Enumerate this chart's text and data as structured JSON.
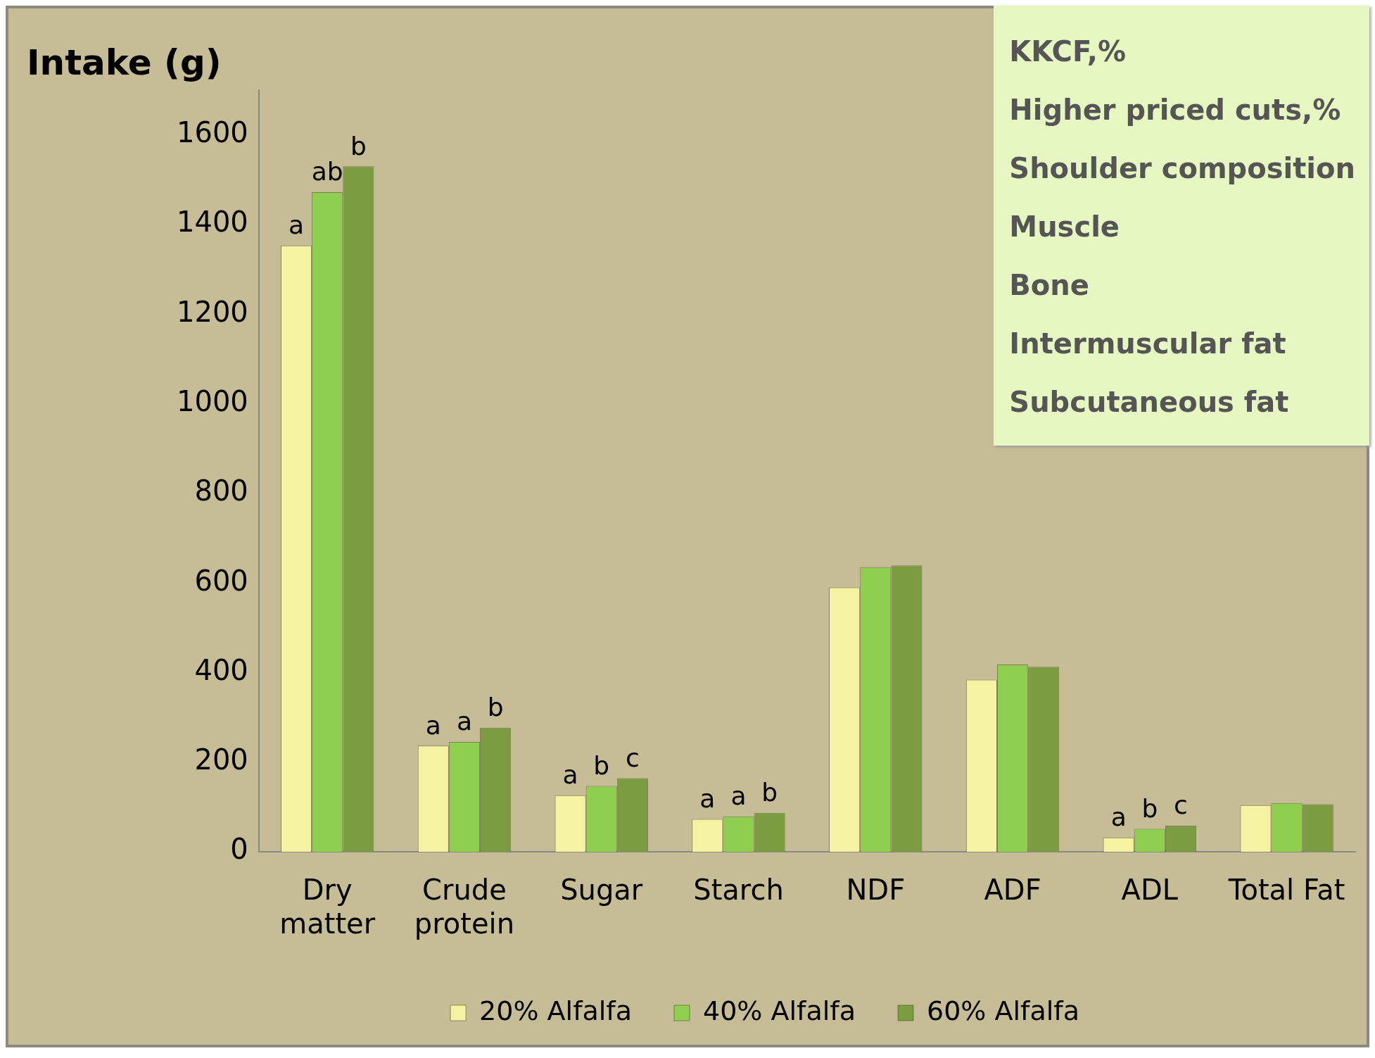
{
  "chart_data": {
    "type": "bar",
    "ylabel": "Intake (g)",
    "categories": [
      "Dry matter",
      "Crude protein",
      "Sugar",
      "Starch",
      "NDF",
      "ADF",
      "ADL",
      "Total Fat"
    ],
    "series": [
      {
        "name": "20% Alfalfa",
        "color": "#f5f2a2",
        "values": [
          1353,
          237,
          126,
          73,
          590,
          384,
          32,
          104
        ],
        "value_labels": [
          "a",
          "a",
          "a",
          "a",
          null,
          null,
          "a",
          null
        ]
      },
      {
        "name": "40% Alfalfa",
        "color": "#8fcf50",
        "values": [
          1472,
          245,
          147,
          79,
          635,
          418,
          51,
          109
        ],
        "value_labels": [
          "ab",
          "a",
          "b",
          "a",
          null,
          null,
          "b",
          null
        ]
      },
      {
        "name": "60% Alfalfa",
        "color": "#7b9c40",
        "values": [
          1530,
          277,
          164,
          87,
          639,
          413,
          58,
          106
        ],
        "value_labels": [
          "b",
          "b",
          "c",
          "b",
          null,
          null,
          "c",
          null
        ]
      }
    ],
    "ylim": [
      0,
      1700
    ],
    "yticks": [
      0,
      200,
      400,
      600,
      800,
      1000,
      1200,
      1400,
      1600
    ],
    "grid": false,
    "legend": "bottom",
    "annotations": [
      "KKCF,%",
      "Higher priced cuts,%",
      "Shoulder composition",
      "Muscle",
      "Bone",
      "Intermuscular fat",
      "Subcutaneous fat"
    ]
  }
}
